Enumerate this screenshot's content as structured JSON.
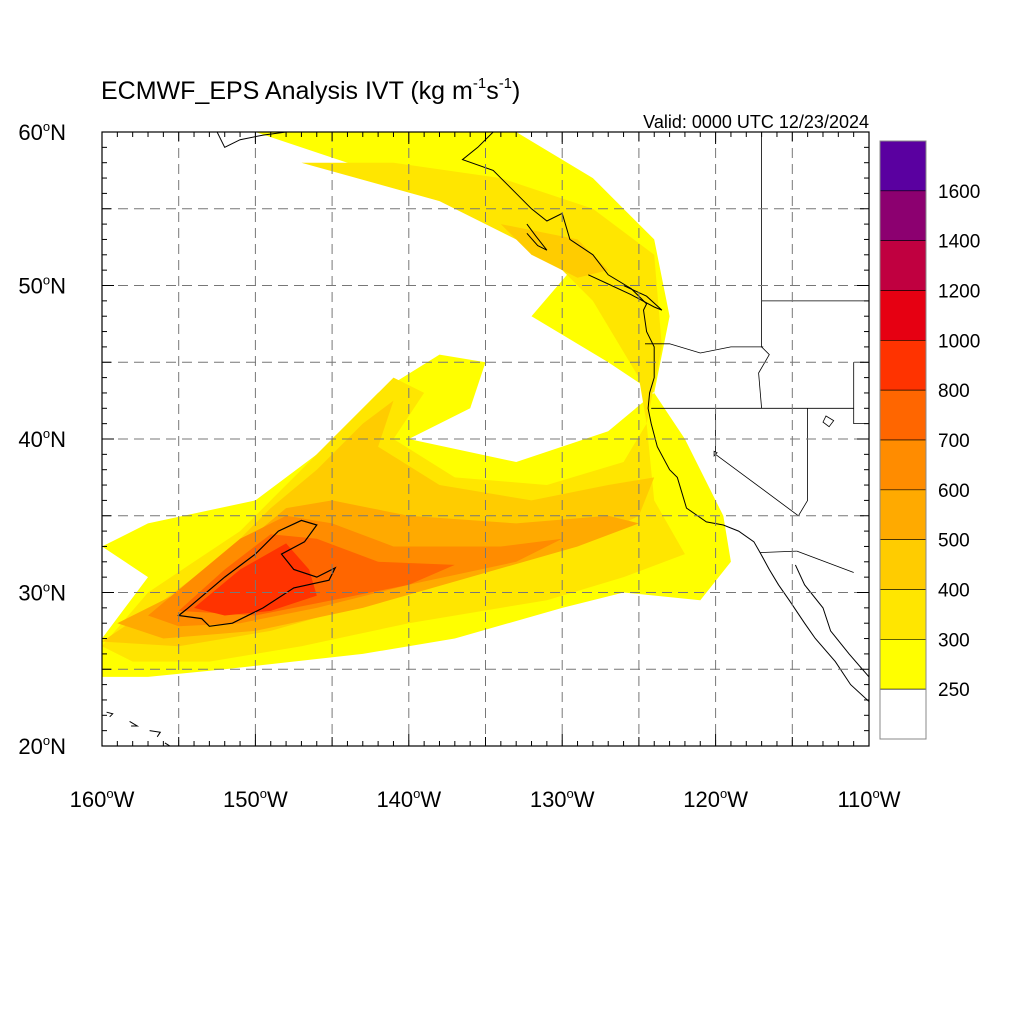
{
  "title": {
    "prefix": "ECMWF_EPS Analysis IVT (kg m",
    "exp1": "-1",
    "mid": "s",
    "exp2": "-1",
    "suffix": ")"
  },
  "valid_label": "Valid: 0000 UTC 12/23/2024",
  "map": {
    "lon_range": [
      -160,
      -110
    ],
    "lat_range": [
      20,
      60
    ],
    "grid_lons": [
      -155,
      -150,
      -145,
      -140,
      -135,
      -130,
      -125,
      -120,
      -115
    ],
    "grid_lats": [
      25,
      30,
      35,
      40,
      45,
      50,
      55
    ],
    "lon_labels": [
      {
        "lon": -160,
        "text": "160°W"
      },
      {
        "lon": -150,
        "text": "150°W"
      },
      {
        "lon": -140,
        "text": "140°W"
      },
      {
        "lon": -130,
        "text": "130°W"
      },
      {
        "lon": -120,
        "text": "120°W"
      },
      {
        "lon": -110,
        "text": "110°W"
      }
    ],
    "lat_labels": [
      {
        "lat": 60,
        "text": "60°N"
      },
      {
        "lat": 50,
        "text": "50°N"
      },
      {
        "lat": 40,
        "text": "40°N"
      },
      {
        "lat": 30,
        "text": "30°N"
      },
      {
        "lat": 20,
        "text": "20°N"
      }
    ]
  },
  "ivt_field": {
    "units": "kg m-1 s-1",
    "levels": [
      {
        "min": 250,
        "color": "#ffff00",
        "regions": [
          [
            [
              -160,
              27
            ],
            [
              -157,
              31
            ],
            [
              -160,
              33
            ],
            [
              -157,
              34.5
            ],
            [
              -150,
              36
            ],
            [
              -146,
              39
            ],
            [
              -142,
              43
            ],
            [
              -138,
              45.5
            ],
            [
              -135,
              45
            ],
            [
              -136,
              42
            ],
            [
              -140,
              40
            ],
            [
              -133,
              38.5
            ],
            [
              -127,
              40.5
            ],
            [
              -124,
              43
            ],
            [
              -127,
              45
            ],
            [
              -132,
              48
            ],
            [
              -129,
              51.5
            ],
            [
              -136,
              55
            ],
            [
              -144,
              58
            ],
            [
              -150,
              60
            ],
            [
              -133,
              60
            ],
            [
              -128,
              57
            ],
            [
              -124,
              53
            ],
            [
              -123,
              48
            ],
            [
              -124,
              43
            ],
            [
              -122,
              40
            ],
            [
              -119.5,
              35
            ],
            [
              -119,
              32
            ],
            [
              -121,
              29.5
            ],
            [
              -126,
              30
            ],
            [
              -130,
              29
            ],
            [
              -137,
              27
            ],
            [
              -143,
              26
            ],
            [
              -152,
              25
            ],
            [
              -157,
              24.5
            ],
            [
              -160,
              24.5
            ]
          ]
        ]
      },
      {
        "min": 300,
        "color": "#ffe600",
        "regions": [
          [
            [
              -160,
              26.5
            ],
            [
              -157,
              30
            ],
            [
              -154,
              32
            ],
            [
              -151,
              34
            ],
            [
              -148,
              37
            ],
            [
              -144,
              41
            ],
            [
              -141,
              44
            ],
            [
              -139,
              43
            ],
            [
              -141,
              40
            ],
            [
              -137,
              37.5
            ],
            [
              -131,
              37
            ],
            [
              -126,
              38.5
            ],
            [
              -124.5,
              41
            ],
            [
              -125,
              44
            ],
            [
              -128,
              49
            ],
            [
              -131,
              52
            ],
            [
              -138,
              55.5
            ],
            [
              -147,
              58
            ],
            [
              -141,
              58
            ],
            [
              -134,
              57
            ],
            [
              -128,
              55
            ],
            [
              -124,
              52
            ],
            [
              -123.5,
              46
            ],
            [
              -124.5,
              41
            ],
            [
              -124,
              36
            ],
            [
              -122,
              32.5
            ],
            [
              -126,
              31
            ],
            [
              -131,
              29.5
            ],
            [
              -140,
              28
            ],
            [
              -147,
              26.5
            ],
            [
              -153,
              25.5
            ],
            [
              -158,
              25.5
            ]
          ]
        ]
      },
      {
        "min": 400,
        "color": "#ffcc00",
        "regions": [
          [
            [
              -160,
              26.8
            ],
            [
              -156,
              29.5
            ],
            [
              -152,
              32.5
            ],
            [
              -149,
              35.5
            ],
            [
              -146,
              38
            ],
            [
              -143,
              41
            ],
            [
              -141,
              42.5
            ],
            [
              -142,
              39.5
            ],
            [
              -138,
              37
            ],
            [
              -132,
              36
            ],
            [
              -127,
              37
            ],
            [
              -124,
              37.5
            ],
            [
              -125,
              35
            ],
            [
              -129,
              33
            ],
            [
              -135,
              31.5
            ],
            [
              -142,
              29.5
            ],
            [
              -149,
              27.5
            ],
            [
              -155,
              26.5
            ]
          ],
          [
            [
              -134,
              54
            ],
            [
              -132,
              52
            ],
            [
              -129,
              50.5
            ],
            [
              -127,
              51
            ],
            [
              -129,
              53
            ]
          ]
        ]
      },
      {
        "min": 500,
        "color": "#ffaa00",
        "regions": [
          [
            [
              -159,
              28
            ],
            [
              -155,
              30
            ],
            [
              -151,
              33
            ],
            [
              -148,
              35.5
            ],
            [
              -145,
              36
            ],
            [
              -140,
              35
            ],
            [
              -133,
              34.5
            ],
            [
              -127,
              35
            ],
            [
              -125,
              34.5
            ],
            [
              -129,
              33
            ],
            [
              -136,
              31
            ],
            [
              -143,
              29
            ],
            [
              -150,
              27.5
            ],
            [
              -156,
              27
            ]
          ]
        ]
      },
      {
        "min": 600,
        "color": "#ff8c00",
        "regions": [
          [
            [
              -157,
              28.5
            ],
            [
              -154,
              31
            ],
            [
              -151,
              33.5
            ],
            [
              -148,
              35
            ],
            [
              -145,
              34.5
            ],
            [
              -141,
              33
            ],
            [
              -134,
              33
            ],
            [
              -130,
              33.5
            ],
            [
              -133,
              32
            ],
            [
              -140,
              30.5
            ],
            [
              -146,
              29
            ],
            [
              -151,
              28
            ],
            [
              -155,
              27.8
            ]
          ]
        ]
      },
      {
        "min": 700,
        "color": "#ff6600",
        "regions": [
          [
            [
              -155,
              28.8
            ],
            [
              -152,
              31.5
            ],
            [
              -149,
              33.8
            ],
            [
              -146,
              33.5
            ],
            [
              -142,
              32
            ],
            [
              -137,
              31.8
            ],
            [
              -140,
              30.5
            ],
            [
              -145,
              29.5
            ],
            [
              -150,
              28.5
            ]
          ]
        ]
      },
      {
        "min": 800,
        "color": "#ff3300",
        "regions": [
          [
            [
              -154,
              29
            ],
            [
              -151,
              31.5
            ],
            [
              -148,
              33.2
            ],
            [
              -146.5,
              31.5
            ],
            [
              -146,
              29.8
            ],
            [
              -149,
              28.8
            ],
            [
              -152,
              28.5
            ]
          ]
        ]
      }
    ],
    "contour_1000": [
      [
        -154.5,
        28.9
      ],
      [
        -152,
        31
      ],
      [
        -150,
        32.5
      ],
      [
        -148.5,
        34
      ],
      [
        -147,
        34.7
      ],
      [
        -146,
        34.4
      ],
      [
        -146.8,
        33.3
      ],
      [
        -148.3,
        32.5
      ],
      [
        -147.5,
        31.5
      ],
      [
        -146,
        31
      ],
      [
        -144.8,
        31.6
      ],
      [
        -145.2,
        30.8
      ],
      [
        -147.5,
        30.3
      ],
      [
        -149.5,
        29
      ],
      [
        -151.5,
        28
      ],
      [
        -153,
        27.8
      ],
      [
        -153.5,
        28.3
      ],
      [
        -155,
        28.5
      ]
    ]
  },
  "boundaries": {
    "coast": [
      [
        [
          -152.5,
          60
        ],
        [
          -152,
          59
        ],
        [
          -151,
          59.5
        ],
        [
          -149.5,
          59.8
        ],
        [
          -148,
          60
        ]
      ],
      [
        [
          -134.5,
          60
        ],
        [
          -135.5,
          59
        ],
        [
          -136.5,
          58.2
        ],
        [
          -134.5,
          57.5
        ],
        [
          -133.5,
          56.5
        ],
        [
          -132,
          55
        ],
        [
          -131,
          54.2
        ],
        [
          -130,
          54.7
        ],
        [
          -129.5,
          53
        ],
        [
          -128,
          52
        ],
        [
          -127,
          50.7
        ],
        [
          -125.5,
          49.8
        ],
        [
          -124.5,
          48.8
        ],
        [
          -124.7,
          48.4
        ],
        [
          -124.5,
          47
        ],
        [
          -124,
          46
        ],
        [
          -124,
          44
        ],
        [
          -124.3,
          43
        ],
        [
          -124.4,
          42
        ],
        [
          -124.2,
          41
        ],
        [
          -123.8,
          39.5
        ],
        [
          -123,
          38
        ],
        [
          -122.5,
          37.5
        ],
        [
          -122.2,
          36.5
        ],
        [
          -121.9,
          35.5
        ],
        [
          -120.6,
          34.6
        ],
        [
          -119.5,
          34.4
        ],
        [
          -118.5,
          34
        ],
        [
          -117.5,
          33.3
        ],
        [
          -117.1,
          32.6
        ],
        [
          -116.5,
          31.5
        ],
        [
          -115.9,
          30.5
        ],
        [
          -115.2,
          29.5
        ],
        [
          -114.2,
          28
        ],
        [
          -113.5,
          27
        ],
        [
          -112.2,
          25.5
        ],
        [
          -111.2,
          24
        ],
        [
          -110,
          22.9
        ]
      ],
      [
        [
          -114.8,
          31.8
        ],
        [
          -114.2,
          30.5
        ],
        [
          -113,
          29
        ],
        [
          -112.5,
          27.5
        ],
        [
          -111.3,
          26
        ],
        [
          -110,
          24.5
        ]
      ],
      [
        [
          -132.3,
          54
        ],
        [
          -131.7,
          53.2
        ],
        [
          -131,
          52.3
        ],
        [
          -131.6,
          52.6
        ],
        [
          -132.3,
          53.4
        ]
      ],
      [
        [
          -128.3,
          50.7
        ],
        [
          -127,
          50.1
        ],
        [
          -125.5,
          49.4
        ],
        [
          -124,
          48.6
        ],
        [
          -123.5,
          48.4
        ],
        [
          -124.5,
          49.3
        ],
        [
          -126,
          50
        ]
      ],
      [
        [
          -155.9,
          20.2
        ],
        [
          -155.1,
          19.7
        ],
        [
          -154.8,
          19.5
        ],
        [
          -155.8,
          19.1
        ],
        [
          -156,
          19.6
        ]
      ],
      [
        [
          -159.7,
          22.2
        ],
        [
          -159.3,
          22.1
        ],
        [
          -159.5,
          21.9
        ]
      ],
      [
        [
          -158.2,
          21.6
        ],
        [
          -157.7,
          21.3
        ],
        [
          -158.1,
          21.3
        ]
      ],
      [
        [
          -156.9,
          21.0
        ],
        [
          -156.2,
          20.9
        ],
        [
          -156.4,
          20.6
        ]
      ]
    ],
    "states": [
      [
        [
          -117,
          60
        ],
        [
          -117,
          49
        ]
      ],
      [
        [
          -117,
          49
        ],
        [
          -110,
          49
        ]
      ],
      [
        [
          -124.6,
          46.2
        ],
        [
          -123,
          46.2
        ],
        [
          -121,
          45.6
        ],
        [
          -119,
          46
        ],
        [
          -116.9,
          46
        ]
      ],
      [
        [
          -117,
          49
        ],
        [
          -117,
          46
        ],
        [
          -116.5,
          45.5
        ],
        [
          -117.2,
          44.3
        ],
        [
          -117,
          42
        ]
      ],
      [
        [
          -124.2,
          42
        ],
        [
          -117,
          42
        ],
        [
          -111,
          42
        ]
      ],
      [
        [
          -120,
          42
        ],
        [
          -120,
          39
        ],
        [
          -114.6,
          35
        ]
      ],
      [
        [
          -114,
          42
        ],
        [
          -114,
          36
        ],
        [
          -114.6,
          35
        ]
      ],
      [
        [
          -114.7,
          32.7
        ],
        [
          -111,
          31.3
        ]
      ],
      [
        [
          -117.1,
          32.6
        ],
        [
          -114.7,
          32.7
        ]
      ],
      [
        [
          -111,
          45
        ],
        [
          -111,
          41
        ],
        [
          -110,
          41
        ]
      ],
      [
        [
          -111,
          45
        ],
        [
          -110,
          45
        ]
      ]
    ],
    "lakes": [
      [
        [
          -112.8,
          41.5
        ],
        [
          -112.3,
          41.2
        ],
        [
          -112.6,
          40.8
        ],
        [
          -113,
          41.1
        ]
      ],
      [
        [
          -120.1,
          39.2
        ],
        [
          -119.9,
          39.1
        ],
        [
          -120.1,
          38.9
        ]
      ]
    ]
  },
  "colorbar": {
    "labels": [
      "1600",
      "1400",
      "1200",
      "1000",
      "800",
      "700",
      "600",
      "500",
      "400",
      "300",
      "250"
    ],
    "colors": [
      "#5a00a0",
      "#8c0070",
      "#c00040",
      "#e60012",
      "#ff3300",
      "#ff6600",
      "#ff8c00",
      "#ffaa00",
      "#ffcc00",
      "#ffe600",
      "#ffff00",
      "#ffffff"
    ]
  }
}
